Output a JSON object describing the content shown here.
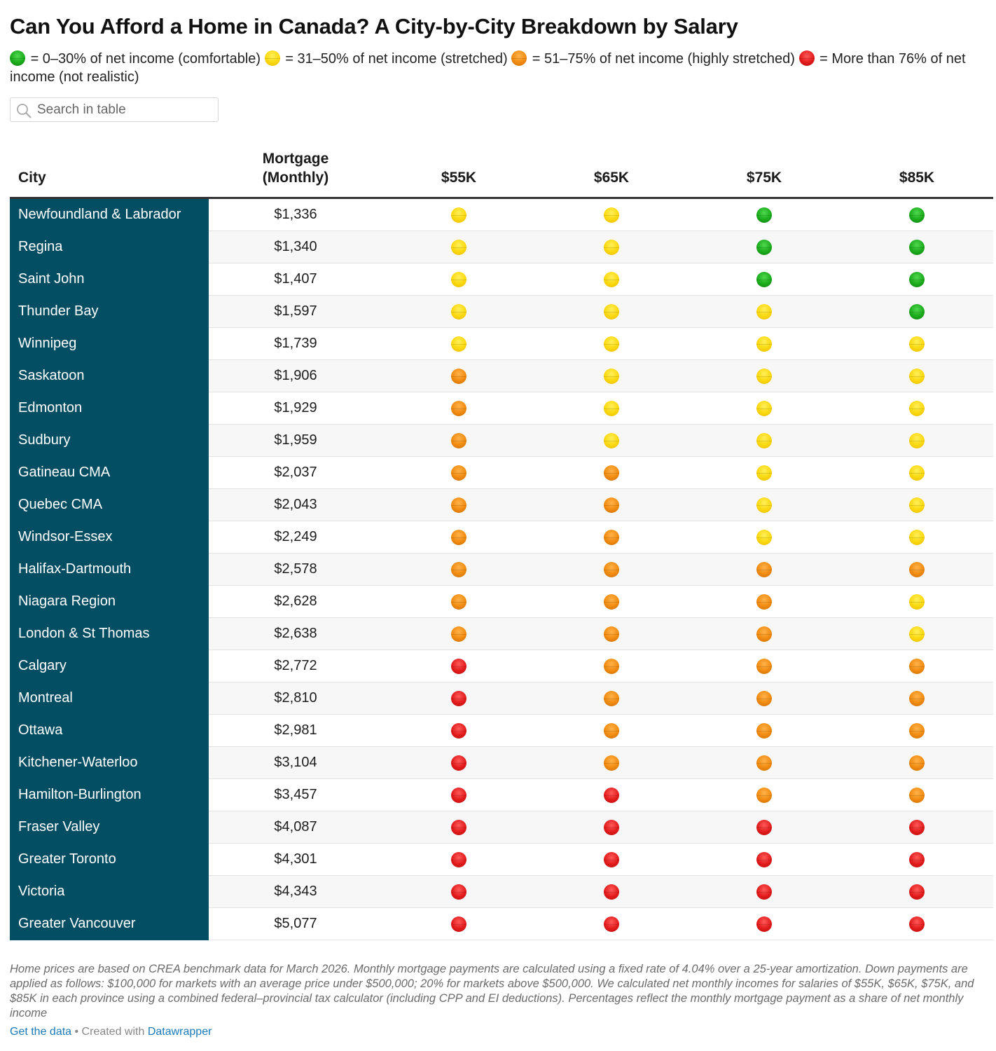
{
  "title": "Can You Afford a Home in Canada? A City-by-City Breakdown by Salary",
  "legend": [
    {
      "status": "green",
      "text": "= 0–30% of net income (comfortable)"
    },
    {
      "status": "yellow",
      "text": "= 31–50% of net income (stretched)"
    },
    {
      "status": "orange",
      "text": "= 51–75% of net income (highly stretched)"
    },
    {
      "status": "red",
      "text": "= More than 76% of net income (not realistic)"
    }
  ],
  "search": {
    "placeholder": "Search in table"
  },
  "table": {
    "headers": {
      "city": "City",
      "mortgage_line1": "Mortgage",
      "mortgage_line2": "(Monthly)",
      "s55": "$55K",
      "s65": "$65K",
      "s75": "$75K",
      "s85": "$85K"
    },
    "rows": [
      {
        "city": "Newfoundland & Labrador",
        "mortgage": "$1,336",
        "s55": "yellow",
        "s65": "yellow",
        "s75": "green",
        "s85": "green"
      },
      {
        "city": "Regina",
        "mortgage": "$1,340",
        "s55": "yellow",
        "s65": "yellow",
        "s75": "green",
        "s85": "green"
      },
      {
        "city": "Saint John",
        "mortgage": "$1,407",
        "s55": "yellow",
        "s65": "yellow",
        "s75": "green",
        "s85": "green"
      },
      {
        "city": "Thunder Bay",
        "mortgage": "$1,597",
        "s55": "yellow",
        "s65": "yellow",
        "s75": "yellow",
        "s85": "green"
      },
      {
        "city": "Winnipeg",
        "mortgage": "$1,739",
        "s55": "yellow",
        "s65": "yellow",
        "s75": "yellow",
        "s85": "yellow"
      },
      {
        "city": "Saskatoon",
        "mortgage": "$1,906",
        "s55": "orange",
        "s65": "yellow",
        "s75": "yellow",
        "s85": "yellow"
      },
      {
        "city": "Edmonton",
        "mortgage": "$1,929",
        "s55": "orange",
        "s65": "yellow",
        "s75": "yellow",
        "s85": "yellow"
      },
      {
        "city": "Sudbury",
        "mortgage": "$1,959",
        "s55": "orange",
        "s65": "yellow",
        "s75": "yellow",
        "s85": "yellow"
      },
      {
        "city": "Gatineau CMA",
        "mortgage": "$2,037",
        "s55": "orange",
        "s65": "orange",
        "s75": "yellow",
        "s85": "yellow"
      },
      {
        "city": "Quebec CMA",
        "mortgage": "$2,043",
        "s55": "orange",
        "s65": "orange",
        "s75": "yellow",
        "s85": "yellow"
      },
      {
        "city": "Windsor-Essex",
        "mortgage": "$2,249",
        "s55": "orange",
        "s65": "orange",
        "s75": "yellow",
        "s85": "yellow"
      },
      {
        "city": "Halifax-Dartmouth",
        "mortgage": "$2,578",
        "s55": "orange",
        "s65": "orange",
        "s75": "orange",
        "s85": "orange"
      },
      {
        "city": "Niagara Region",
        "mortgage": "$2,628",
        "s55": "orange",
        "s65": "orange",
        "s75": "orange",
        "s85": "yellow"
      },
      {
        "city": "London & St Thomas",
        "mortgage": "$2,638",
        "s55": "orange",
        "s65": "orange",
        "s75": "orange",
        "s85": "yellow"
      },
      {
        "city": "Calgary",
        "mortgage": "$2,772",
        "s55": "red",
        "s65": "orange",
        "s75": "orange",
        "s85": "orange"
      },
      {
        "city": "Montreal",
        "mortgage": "$2,810",
        "s55": "red",
        "s65": "orange",
        "s75": "orange",
        "s85": "orange"
      },
      {
        "city": "Ottawa",
        "mortgage": "$2,981",
        "s55": "red",
        "s65": "orange",
        "s75": "orange",
        "s85": "orange"
      },
      {
        "city": "Kitchener-Waterloo",
        "mortgage": "$3,104",
        "s55": "red",
        "s65": "orange",
        "s75": "orange",
        "s85": "orange"
      },
      {
        "city": "Hamilton-Burlington",
        "mortgage": "$3,457",
        "s55": "red",
        "s65": "red",
        "s75": "orange",
        "s85": "orange"
      },
      {
        "city": "Fraser Valley",
        "mortgage": "$4,087",
        "s55": "red",
        "s65": "red",
        "s75": "red",
        "s85": "red"
      },
      {
        "city": "Greater Toronto",
        "mortgage": "$4,301",
        "s55": "red",
        "s65": "red",
        "s75": "red",
        "s85": "red"
      },
      {
        "city": "Victoria",
        "mortgage": "$4,343",
        "s55": "red",
        "s65": "red",
        "s75": "red",
        "s85": "red"
      },
      {
        "city": "Greater Vancouver",
        "mortgage": "$5,077",
        "s55": "red",
        "s65": "red",
        "s75": "red",
        "s85": "red"
      }
    ]
  },
  "notes": "Home prices are based on CREA benchmark data for March 2026. Monthly mortgage payments are calculated using a fixed rate of 4.04% over a 25-year amortization. Down payments are applied as follows: $100,000 for markets with an average price under $500,000; 20% for markets above $500,000. We calculated net monthly incomes for salaries of $55K, $65K, $75K, and $85K in each province using a combined federal–provincial tax calculator (including CPP and EI deductions). Percentages reflect the monthly mortgage payment as a share of net monthly income",
  "credits": {
    "get_data": "Get the data",
    "separator": " • Created with ",
    "tool": "Datawrapper"
  },
  "colors": {
    "city_column": "#034e62",
    "green": "#1bab1b",
    "yellow": "#fad80d",
    "orange": "#f08b10",
    "red": "#e21b1b",
    "link": "#1a7ab8"
  }
}
